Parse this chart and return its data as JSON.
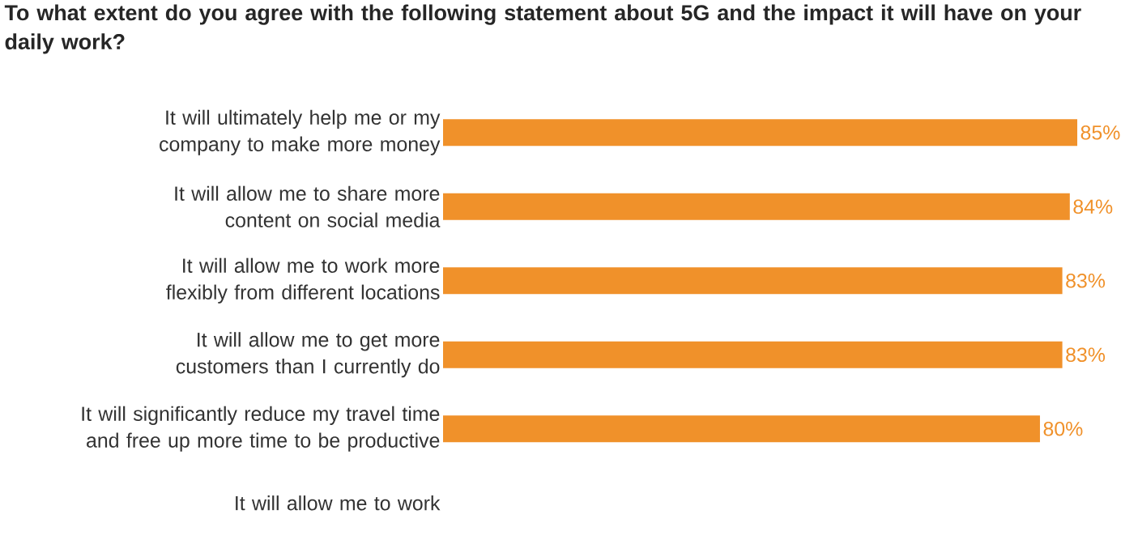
{
  "chart_data": {
    "type": "bar",
    "orientation": "horizontal",
    "title": "To what extent do you agree with the following statement about 5G and the impact it will have on your daily work?",
    "categories": [
      "It will ultimately help me or my company to make more money",
      "It will allow me to share more content on social media",
      "It will allow me to work more flexibly from different locations",
      "It will allow me to get more customers than I currently do",
      "It will significantly reduce my travel time and free up more time to be productive",
      "It will allow me to work"
    ],
    "values": [
      85,
      84,
      83,
      83,
      80,
      null
    ],
    "value_labels": [
      "85%",
      "84%",
      "83%",
      "83%",
      "80%",
      null
    ],
    "color": "#f0912a"
  }
}
